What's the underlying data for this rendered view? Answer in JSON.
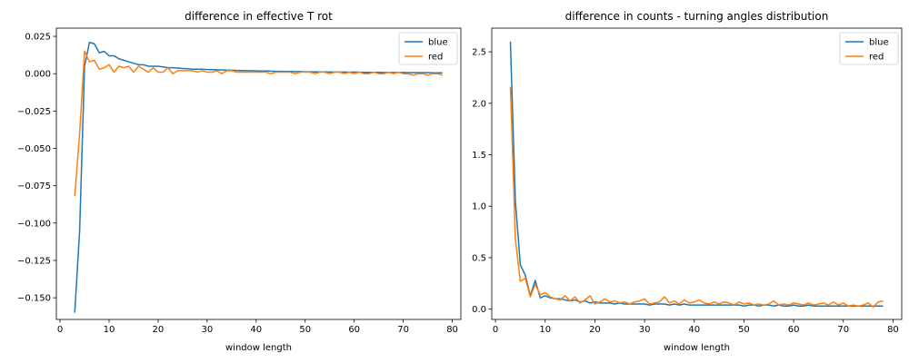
{
  "chart_data": [
    {
      "type": "line",
      "title": "difference in effective T rot",
      "xlabel": "window length",
      "ylabel": "",
      "xlim": [
        -0.75,
        81.75
      ],
      "ylim": [
        -0.1645,
        0.0305
      ],
      "xticks": [
        0,
        10,
        20,
        30,
        40,
        50,
        60,
        70,
        80
      ],
      "yticks": [
        -0.15,
        -0.125,
        -0.1,
        -0.075,
        -0.05,
        -0.025,
        0.0,
        0.025
      ],
      "ytick_labels": [
        "−0.150",
        "−0.125",
        "−0.100",
        "−0.075",
        "−0.050",
        "−0.025",
        "0.000",
        "0.025"
      ],
      "grid": false,
      "legend": "top-right",
      "series": [
        {
          "name": "blue",
          "color": "#1f77b4",
          "x": [
            3,
            4,
            5,
            6,
            7,
            8,
            9,
            10,
            11,
            12,
            13,
            14,
            15,
            16,
            17,
            18,
            19,
            20,
            21,
            22,
            23,
            24,
            25,
            26,
            27,
            28,
            29,
            30,
            31,
            32,
            33,
            34,
            35,
            36,
            37,
            38,
            39,
            40,
            41,
            42,
            43,
            44,
            45,
            46,
            47,
            48,
            49,
            50,
            51,
            52,
            53,
            54,
            55,
            56,
            57,
            58,
            59,
            60,
            61,
            62,
            63,
            64,
            65,
            66,
            67,
            68,
            69,
            70,
            71,
            72,
            73,
            74,
            75,
            76,
            77,
            78
          ],
          "y": [
            -0.16,
            -0.105,
            0.005,
            0.021,
            0.02,
            0.014,
            0.015,
            0.012,
            0.012,
            0.01,
            0.009,
            0.008,
            0.007,
            0.006,
            0.006,
            0.005,
            0.005,
            0.005,
            0.0045,
            0.004,
            0.004,
            0.0038,
            0.0035,
            0.0033,
            0.003,
            0.003,
            0.003,
            0.0028,
            0.0027,
            0.0026,
            0.0025,
            0.0024,
            0.0023,
            0.0022,
            0.0021,
            0.002,
            0.002,
            0.0019,
            0.0018,
            0.0018,
            0.0017,
            0.0016,
            0.0016,
            0.0015,
            0.0015,
            0.0014,
            0.0014,
            0.0013,
            0.0013,
            0.0012,
            0.0012,
            0.0012,
            0.0011,
            0.0011,
            0.0011,
            0.001,
            0.001,
            0.001,
            0.001,
            0.0009,
            0.0009,
            0.0009,
            0.0009,
            0.0008,
            0.0008,
            0.0008,
            0.0008,
            0.0008,
            0.0007,
            0.0007,
            0.0007,
            0.0007,
            0.0007,
            0.0006,
            0.0006,
            0.0006
          ]
        },
        {
          "name": "red",
          "color": "#ff7f0e",
          "x": [
            3,
            4,
            5,
            6,
            7,
            8,
            9,
            10,
            11,
            12,
            13,
            14,
            15,
            16,
            17,
            18,
            19,
            20,
            21,
            22,
            23,
            24,
            25,
            26,
            27,
            28,
            29,
            30,
            31,
            32,
            33,
            34,
            35,
            36,
            37,
            38,
            39,
            40,
            41,
            42,
            43,
            44,
            45,
            46,
            47,
            48,
            49,
            50,
            51,
            52,
            53,
            54,
            55,
            56,
            57,
            58,
            59,
            60,
            61,
            62,
            63,
            64,
            65,
            66,
            67,
            68,
            69,
            70,
            71,
            72,
            73,
            74,
            75,
            76,
            77,
            78
          ],
          "y": [
            -0.082,
            -0.04,
            0.015,
            0.008,
            0.009,
            0.003,
            0.004,
            0.006,
            0.001,
            0.005,
            0.004,
            0.005,
            0.001,
            0.005,
            0.003,
            0.001,
            0.004,
            0.001,
            0.001,
            0.004,
            0.0,
            0.002,
            0.002,
            0.002,
            0.002,
            0.001,
            0.002,
            0.001,
            0.001,
            0.002,
            0.0,
            0.002,
            0.002,
            0.001,
            0.001,
            0.001,
            0.001,
            0.001,
            0.001,
            0.001,
            0.0,
            0.001,
            0.001,
            0.001,
            0.001,
            0.0,
            0.001,
            0.001,
            0.001,
            0.0,
            0.001,
            0.001,
            0.0,
            0.001,
            0.001,
            0.0,
            0.001,
            0.0,
            0.001,
            0.0,
            0.0,
            0.001,
            0.0,
            0.0,
            0.001,
            0.0,
            0.001,
            0.0,
            0.0,
            -0.001,
            0.0,
            0.0,
            -0.001,
            0.0,
            0.0,
            -0.001
          ]
        }
      ]
    },
    {
      "type": "line",
      "title": "difference in counts - turning angles distribution",
      "xlabel": "window length",
      "ylabel": "",
      "xlim": [
        -0.75,
        81.75
      ],
      "ylim": [
        -0.1,
        2.73
      ],
      "xticks": [
        0,
        10,
        20,
        30,
        40,
        50,
        60,
        70,
        80
      ],
      "yticks": [
        0.0,
        0.5,
        1.0,
        1.5,
        2.0,
        2.5
      ],
      "ytick_labels": [
        "0.0",
        "0.5",
        "1.0",
        "1.5",
        "2.0",
        "2.5"
      ],
      "grid": false,
      "legend": "top-right",
      "series": [
        {
          "name": "blue",
          "color": "#1f77b4",
          "x": [
            3,
            4,
            5,
            6,
            7,
            8,
            9,
            10,
            11,
            12,
            13,
            14,
            15,
            16,
            17,
            18,
            19,
            20,
            21,
            22,
            23,
            24,
            25,
            26,
            27,
            28,
            29,
            30,
            31,
            32,
            33,
            34,
            35,
            36,
            37,
            38,
            39,
            40,
            41,
            42,
            43,
            44,
            45,
            46,
            47,
            48,
            49,
            50,
            51,
            52,
            53,
            54,
            55,
            56,
            57,
            58,
            59,
            60,
            61,
            62,
            63,
            64,
            65,
            66,
            67,
            68,
            69,
            70,
            71,
            72,
            73,
            74,
            75,
            76,
            77,
            78
          ],
          "y": [
            2.6,
            1.05,
            0.43,
            0.33,
            0.13,
            0.28,
            0.11,
            0.13,
            0.11,
            0.1,
            0.1,
            0.09,
            0.08,
            0.09,
            0.07,
            0.08,
            0.06,
            0.07,
            0.06,
            0.06,
            0.06,
            0.05,
            0.06,
            0.05,
            0.05,
            0.05,
            0.05,
            0.05,
            0.04,
            0.05,
            0.05,
            0.05,
            0.04,
            0.05,
            0.04,
            0.05,
            0.04,
            0.04,
            0.04,
            0.04,
            0.04,
            0.04,
            0.04,
            0.04,
            0.04,
            0.04,
            0.04,
            0.03,
            0.04,
            0.04,
            0.03,
            0.04,
            0.04,
            0.03,
            0.04,
            0.03,
            0.03,
            0.04,
            0.03,
            0.03,
            0.04,
            0.03,
            0.03,
            0.03,
            0.03,
            0.03,
            0.03,
            0.03,
            0.03,
            0.03,
            0.03,
            0.03,
            0.03,
            0.03,
            0.03,
            0.03
          ]
        },
        {
          "name": "red",
          "color": "#ff7f0e",
          "x": [
            3,
            4,
            5,
            6,
            7,
            8,
            9,
            10,
            11,
            12,
            13,
            14,
            15,
            16,
            17,
            18,
            19,
            20,
            21,
            22,
            23,
            24,
            25,
            26,
            27,
            28,
            29,
            30,
            31,
            32,
            33,
            34,
            35,
            36,
            37,
            38,
            39,
            40,
            41,
            42,
            43,
            44,
            45,
            46,
            47,
            48,
            49,
            50,
            51,
            52,
            53,
            54,
            55,
            56,
            57,
            58,
            59,
            60,
            61,
            62,
            63,
            64,
            65,
            66,
            67,
            68,
            69,
            70,
            71,
            72,
            73,
            74,
            75,
            76,
            77,
            78
          ],
          "y": [
            2.16,
            0.68,
            0.27,
            0.3,
            0.12,
            0.24,
            0.14,
            0.16,
            0.12,
            0.1,
            0.09,
            0.13,
            0.08,
            0.12,
            0.06,
            0.09,
            0.13,
            0.05,
            0.07,
            0.1,
            0.07,
            0.08,
            0.06,
            0.07,
            0.05,
            0.07,
            0.08,
            0.1,
            0.05,
            0.06,
            0.07,
            0.12,
            0.06,
            0.08,
            0.05,
            0.09,
            0.06,
            0.07,
            0.09,
            0.06,
            0.05,
            0.07,
            0.05,
            0.07,
            0.06,
            0.04,
            0.07,
            0.05,
            0.06,
            0.04,
            0.05,
            0.04,
            0.05,
            0.08,
            0.04,
            0.05,
            0.04,
            0.06,
            0.05,
            0.04,
            0.06,
            0.04,
            0.05,
            0.06,
            0.04,
            0.07,
            0.04,
            0.06,
            0.03,
            0.04,
            0.03,
            0.04,
            0.06,
            0.02,
            0.07,
            0.08
          ]
        }
      ]
    }
  ]
}
